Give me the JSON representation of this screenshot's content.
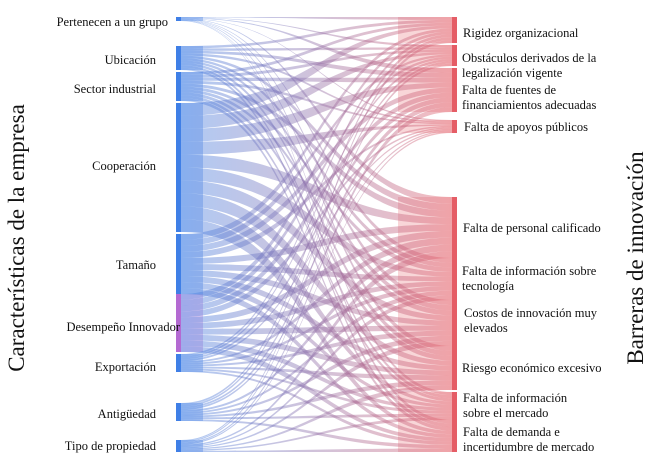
{
  "left_axis_title": "Características de la empresa",
  "right_axis_title": "Barreras de innovación",
  "left_nodes": [
    {
      "label": "Pertenecen a un grupo"
    },
    {
      "label": "Ubicación"
    },
    {
      "label": "Sector industrial"
    },
    {
      "label": "Cooperación"
    },
    {
      "label": "Tamaño"
    },
    {
      "label": "Desempeño Innovador"
    },
    {
      "label": "Exportación"
    },
    {
      "label": "Antigüedad"
    },
    {
      "label": "Tipo de propiedad"
    }
  ],
  "right_nodes": [
    {
      "label": "Rigidez organizacional"
    },
    {
      "label": "Obstáculos derivados de la legalización vigente"
    },
    {
      "label": "Falta de fuentes de financiamientos adecuadas"
    },
    {
      "label": "Falta de apoyos públicos"
    },
    {
      "label": "Falta de personal calificado"
    },
    {
      "label": "Falta de información sobre tecnología"
    },
    {
      "label": "Costos de innovación muy elevados"
    },
    {
      "label": "Riesgo económico excesivo"
    },
    {
      "label": "Falta de información sobre el mercado"
    },
    {
      "label": "Falta de demanda e incertidumbre de mercado"
    }
  ],
  "colors": {
    "source": "#3f7fe6",
    "source_highlight": "#b46ad2",
    "target": "#e55d66",
    "target_light": "#f0a3a8"
  }
}
